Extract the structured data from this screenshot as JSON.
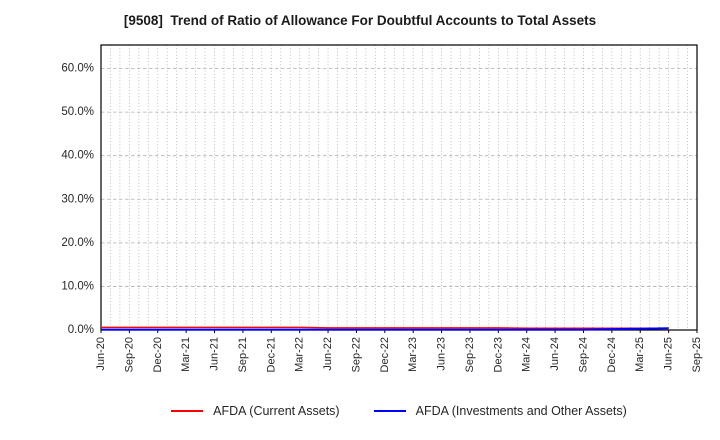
{
  "title": "[9508]  Trend of Ratio of Allowance For Doubtful Accounts to Total Assets",
  "chart_data": {
    "type": "line",
    "title": "[9508]  Trend of Ratio of Allowance For Doubtful Accounts to Total Assets",
    "xlabel": "",
    "ylabel": "",
    "x_tick_labels": [
      "Jun-20",
      "Sep-20",
      "Dec-20",
      "Mar-21",
      "Jun-21",
      "Sep-21",
      "Dec-21",
      "Mar-22",
      "Jun-22",
      "Sep-22",
      "Dec-22",
      "Mar-23",
      "Jun-23",
      "Sep-23",
      "Dec-23",
      "Mar-24",
      "Jun-24",
      "Sep-24",
      "Dec-24",
      "Mar-25",
      "Jun-25",
      "Sep-25"
    ],
    "x_months_total": 63,
    "ytick_labels": [
      "0.0%",
      "10.0%",
      "20.0%",
      "30.0%",
      "40.0%",
      "50.0%",
      "60.0%"
    ],
    "yticks": [
      0,
      10,
      20,
      30,
      40,
      50,
      60
    ],
    "ylim": [
      0,
      65.4
    ],
    "grid": true,
    "x_minor_gridlines": "monthly",
    "legend_position": "bottom",
    "series": [
      {
        "name": "AFDA (Current Assets)",
        "color": "#ff0000",
        "x": [
          "Jun-20",
          "Sep-20",
          "Dec-20",
          "Mar-21",
          "Jun-21",
          "Sep-21",
          "Dec-21",
          "Mar-22",
          "Jun-22",
          "Sep-22",
          "Dec-22",
          "Mar-23",
          "Jun-23",
          "Sep-23",
          "Dec-23",
          "Mar-24",
          "Jun-24",
          "Sep-24",
          "Dec-24",
          "Mar-25",
          "Jun-25"
        ],
        "values": [
          0.6,
          0.6,
          0.6,
          0.6,
          0.6,
          0.6,
          0.6,
          0.6,
          0.5,
          0.5,
          0.5,
          0.5,
          0.5,
          0.5,
          0.5,
          0.4,
          0.4,
          0.4,
          0.4,
          0.4,
          0.4
        ]
      },
      {
        "name": "AFDA (Investments and Other Assets)",
        "color": "#0000ff",
        "x": [
          "Jun-20",
          "Sep-20",
          "Dec-20",
          "Mar-21",
          "Jun-21",
          "Sep-21",
          "Dec-21",
          "Mar-22",
          "Jun-22",
          "Sep-22",
          "Dec-22",
          "Mar-23",
          "Jun-23",
          "Sep-23",
          "Dec-23",
          "Mar-24",
          "Jun-24",
          "Sep-24",
          "Dec-24",
          "Mar-25",
          "Jun-25"
        ],
        "values": [
          0.1,
          0.1,
          0.1,
          0.1,
          0.1,
          0.1,
          0.1,
          0.1,
          0.1,
          0.1,
          0.1,
          0.1,
          0.1,
          0.1,
          0.1,
          0.1,
          0.1,
          0.1,
          0.2,
          0.3,
          0.4
        ]
      }
    ],
    "colors": {
      "grid": "#b0b0b0",
      "axis_border": "#000000",
      "tick_label": "#262626",
      "background": "#ffffff"
    }
  }
}
